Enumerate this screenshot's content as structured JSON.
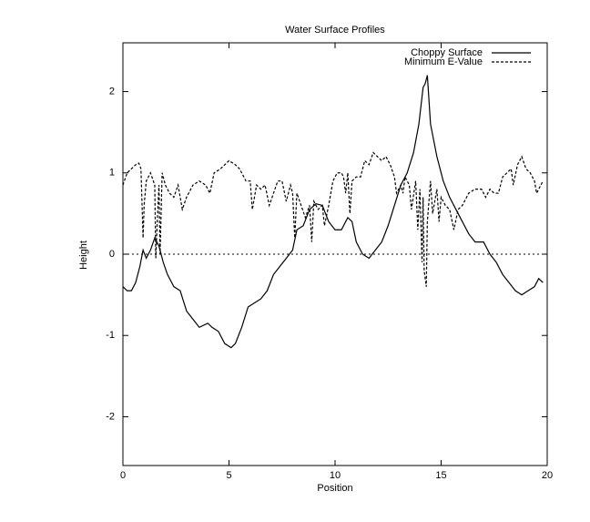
{
  "chart_data": {
    "type": "line",
    "title": "Water Surface Profiles",
    "x_label": "Position",
    "y_label": "Height",
    "xlim": [
      0,
      20
    ],
    "xticks": [
      0,
      5,
      10,
      15,
      20
    ],
    "ylim": [
      -2.6,
      2.6
    ],
    "yticks": [
      -2,
      -1,
      0,
      1,
      2
    ],
    "zeroaxis": true,
    "legend": "top-right",
    "series": [
      {
        "name": "Choppy Surface",
        "color": "#000000",
        "dashed": false,
        "x": [
          0,
          0.2,
          0.4,
          0.6,
          0.8,
          0.95,
          1.1,
          1.3,
          1.5,
          1.7,
          1.9,
          2.1,
          2.4,
          2.7,
          3.0,
          3.3,
          3.6,
          4.0,
          4.2,
          4.5,
          4.8,
          5.1,
          5.3,
          5.6,
          5.9,
          6.2,
          6.5,
          6.8,
          7.1,
          7.4,
          7.7,
          8.0,
          8.2,
          8.5,
          8.8,
          9.1,
          9.4,
          9.7,
          10.0,
          10.3,
          10.6,
          10.8,
          11.0,
          11.3,
          11.6,
          11.9,
          12.2,
          12.5,
          12.8,
          13.1,
          13.4,
          13.7,
          13.95,
          14.15,
          14.25,
          14.35,
          14.5,
          14.8,
          15.1,
          15.4,
          15.7,
          16.0,
          16.3,
          16.6,
          17.0,
          17.3,
          17.6,
          17.9,
          18.2,
          18.5,
          18.8,
          19.1,
          19.4,
          19.6,
          19.8
        ],
        "values": [
          -0.4,
          -0.45,
          -0.45,
          -0.35,
          -0.15,
          0.05,
          -0.05,
          0.05,
          0.2,
          0.1,
          -0.1,
          -0.25,
          -0.4,
          -0.45,
          -0.7,
          -0.8,
          -0.9,
          -0.85,
          -0.9,
          -0.95,
          -1.1,
          -1.15,
          -1.1,
          -0.9,
          -0.65,
          -0.6,
          -0.55,
          -0.45,
          -0.25,
          -0.15,
          -0.05,
          0.05,
          0.3,
          0.35,
          0.55,
          0.62,
          0.6,
          0.4,
          0.3,
          0.3,
          0.45,
          0.4,
          0.15,
          0,
          -0.05,
          0.05,
          0.15,
          0.35,
          0.6,
          0.85,
          1.0,
          1.25,
          1.6,
          2.05,
          2.1,
          2.2,
          1.6,
          1.2,
          0.9,
          0.7,
          0.55,
          0.4,
          0.25,
          0.15,
          0.15,
          0,
          -0.1,
          -0.25,
          -0.35,
          -0.45,
          -0.5,
          -0.45,
          -0.4,
          -0.3,
          -0.35
        ]
      },
      {
        "name": "Minimum E-Value",
        "color": "#000000",
        "dashed": true,
        "x": [
          0,
          0.2,
          0.4,
          0.6,
          0.75,
          0.85,
          0.95,
          1.0,
          1.1,
          1.3,
          1.5,
          1.55,
          1.6,
          1.7,
          1.75,
          1.85,
          2.0,
          2.2,
          2.4,
          2.6,
          2.8,
          3.0,
          3.3,
          3.6,
          3.9,
          4.1,
          4.3,
          4.6,
          5.0,
          5.3,
          5.5,
          5.8,
          6.0,
          6.1,
          6.3,
          6.5,
          6.7,
          6.9,
          7.1,
          7.3,
          7.5,
          7.7,
          7.9,
          8.0,
          8.1,
          8.2,
          8.4,
          8.6,
          8.8,
          8.9,
          9.0,
          9.2,
          9.4,
          9.5,
          9.7,
          9.9,
          10.1,
          10.3,
          10.4,
          10.5,
          10.6,
          10.7,
          10.8,
          11.0,
          11.2,
          11.4,
          11.6,
          11.8,
          12.0,
          12.2,
          12.4,
          12.6,
          12.8,
          12.9,
          13.1,
          13.2,
          13.3,
          13.5,
          13.6,
          13.8,
          13.9,
          14.0,
          14.1,
          14.15,
          14.2,
          14.3,
          14.35,
          14.5,
          14.6,
          14.8,
          14.9,
          15.0,
          15.2,
          15.4,
          15.6,
          15.8,
          16.0,
          16.3,
          16.6,
          16.9,
          17.1,
          17.3,
          17.5,
          17.7,
          17.9,
          18.1,
          18.3,
          18.4,
          18.6,
          18.8,
          19.0,
          19.2,
          19.4,
          19.5,
          19.7,
          19.8
        ],
        "values": [
          0.85,
          1.0,
          1.05,
          1.1,
          1.12,
          1.05,
          0.2,
          0.6,
          0.9,
          1.0,
          0.85,
          -0.05,
          0.3,
          0.85,
          0,
          1.0,
          0.85,
          0.75,
          0.7,
          0.85,
          0.55,
          0.7,
          0.85,
          0.9,
          0.85,
          0.75,
          1.0,
          1.05,
          1.15,
          1.1,
          1.05,
          0.9,
          0.9,
          0.55,
          0.85,
          0.8,
          0.85,
          0.6,
          0.75,
          0.9,
          0.9,
          0.65,
          0.85,
          0.75,
          0.2,
          0.75,
          0.6,
          0.45,
          0.6,
          0.15,
          0.65,
          0.55,
          0.6,
          0.35,
          0.6,
          0.9,
          1.0,
          1.0,
          0.95,
          0.75,
          1.0,
          0.5,
          0.9,
          0.95,
          0.95,
          1.15,
          1.1,
          1.25,
          1.2,
          1.15,
          1.2,
          1.1,
          0.95,
          0.75,
          0.85,
          0.75,
          0.95,
          0.85,
          0.55,
          0.9,
          0.3,
          0.8,
          -0.1,
          0.7,
          -0.2,
          -0.4,
          0.4,
          0.9,
          0.5,
          0.8,
          0.4,
          0.7,
          0.6,
          0.55,
          0.3,
          0.55,
          0.6,
          0.75,
          0.8,
          0.8,
          0.7,
          0.8,
          0.75,
          0.75,
          0.95,
          1.0,
          1.05,
          0.85,
          1.1,
          1.2,
          1.05,
          1.0,
          0.9,
          0.75,
          0.85,
          0.9
        ]
      }
    ]
  }
}
